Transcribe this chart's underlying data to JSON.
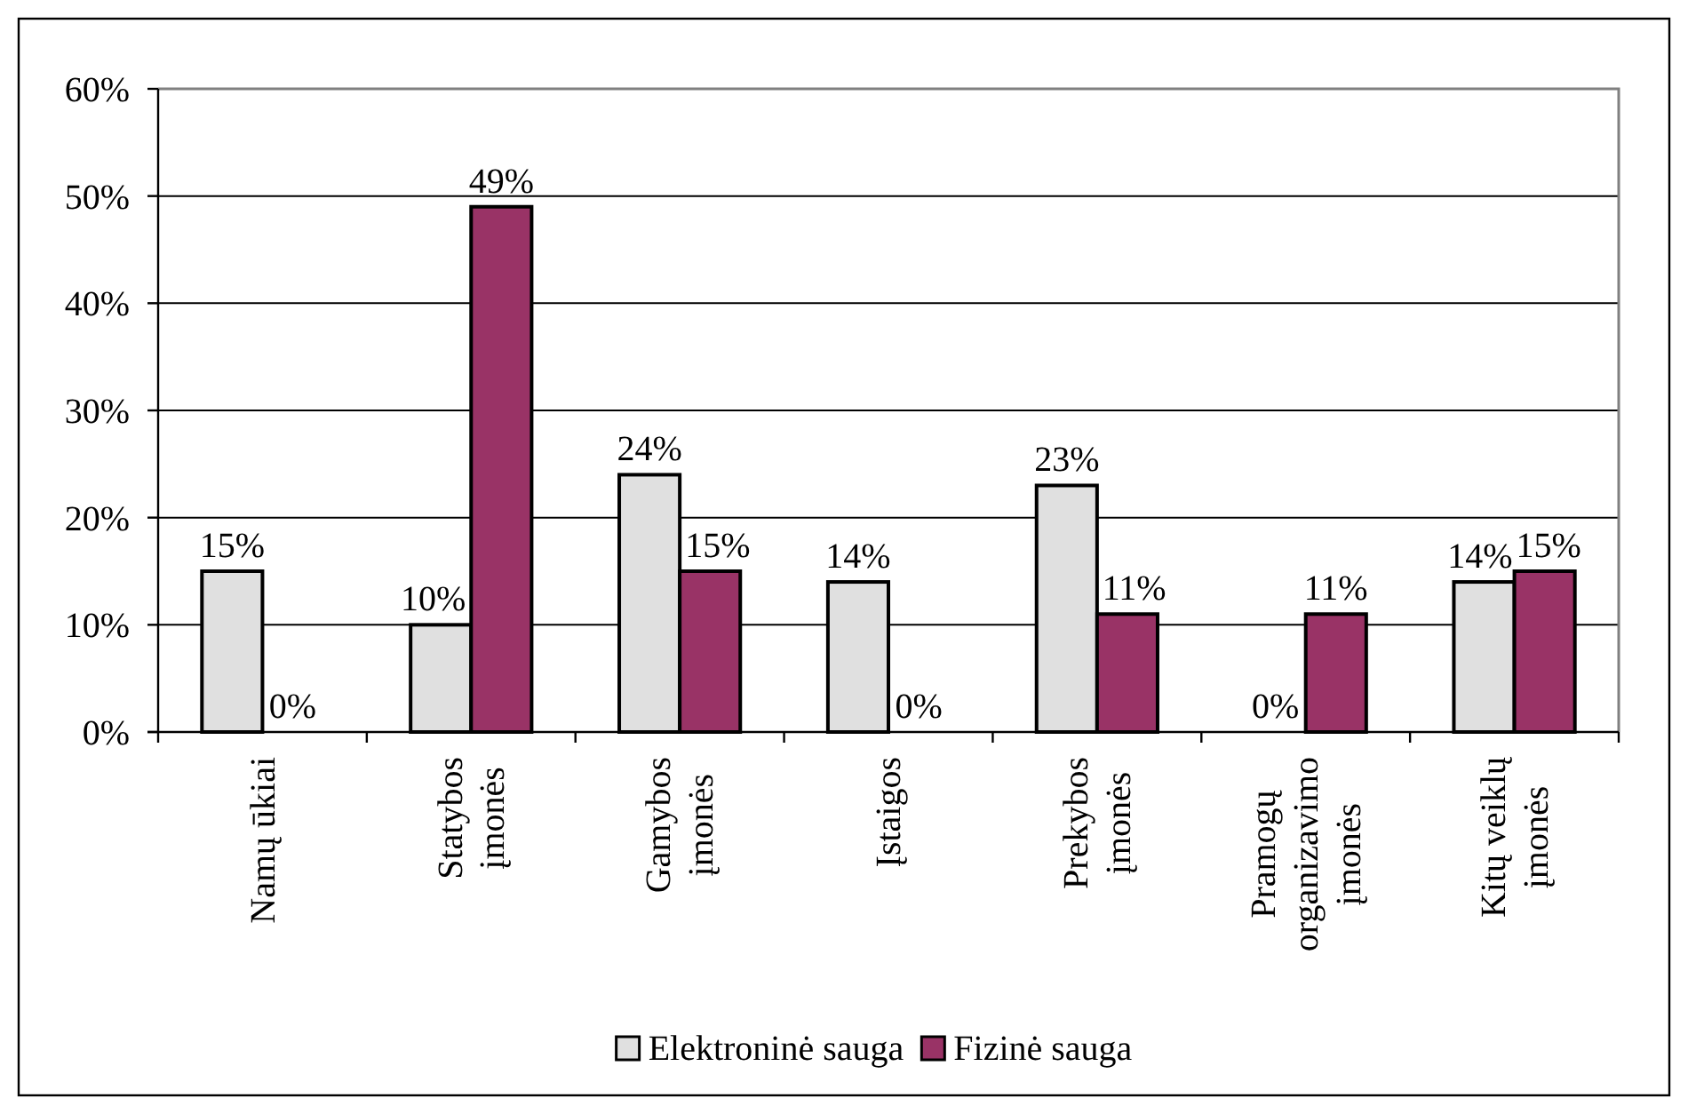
{
  "chart_data": {
    "type": "bar",
    "categories": [
      "Namų ūkiai",
      "Statybos įmonės",
      "Gamybos įmonės",
      "Įstaigos",
      "Prekybos įmonės",
      "Pramogų organizavimo įmonės",
      "Kitų veiklų įmonės"
    ],
    "series": [
      {
        "name": "Elektroninė sauga",
        "color": "#e0e0e0",
        "values": [
          15,
          10,
          24,
          14,
          23,
          0,
          14
        ],
        "value_labels": [
          "15%",
          "10%",
          "24%",
          "14%",
          "23%",
          "0%",
          "14%"
        ]
      },
      {
        "name": "Fizinė sauga",
        "color": "#993366",
        "values": [
          0,
          49,
          15,
          0,
          11,
          11,
          15
        ],
        "value_labels": [
          "0%",
          "49%",
          "15%",
          "0%",
          "11%",
          "11%",
          "15%"
        ]
      }
    ],
    "ylim": [
      0,
      60
    ],
    "yticks": [
      {
        "value": 0,
        "label": "0%"
      },
      {
        "value": 10,
        "label": "10%"
      },
      {
        "value": 20,
        "label": "20%"
      },
      {
        "value": 30,
        "label": "30%"
      },
      {
        "value": 40,
        "label": "40%"
      },
      {
        "value": 50,
        "label": "50%"
      },
      {
        "value": 60,
        "label": "60%"
      }
    ],
    "grid": "y",
    "legend": "bottom"
  }
}
